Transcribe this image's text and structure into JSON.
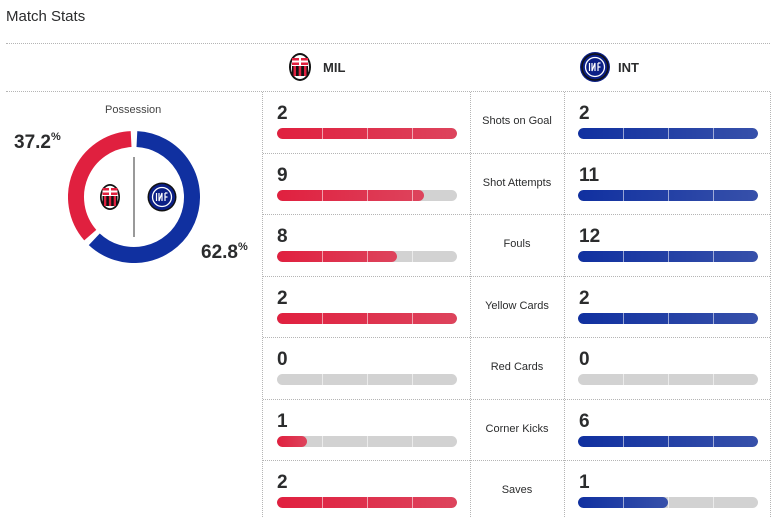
{
  "header": {
    "title": "Match Stats"
  },
  "teams": {
    "home": {
      "abbr": "MIL",
      "color": "#e0203f",
      "crest": "ac-milan-crest-icon"
    },
    "away": {
      "abbr": "INT",
      "color": "#1030a0",
      "crest": "inter-crest-icon"
    }
  },
  "possession": {
    "label": "Possession",
    "home_value": "37.2",
    "away_value": "62.8",
    "unit": "%",
    "home_fraction": 0.372,
    "away_fraction": 0.628
  },
  "stats": [
    {
      "label": "Shots on Goal",
      "home": "2",
      "away": "2",
      "home_fill": 1.0,
      "away_fill": 1.0
    },
    {
      "label": "Shot Attempts",
      "home": "9",
      "away": "11",
      "home_fill": 0.818,
      "away_fill": 1.0
    },
    {
      "label": "Fouls",
      "home": "8",
      "away": "12",
      "home_fill": 0.667,
      "away_fill": 1.0
    },
    {
      "label": "Yellow Cards",
      "home": "2",
      "away": "2",
      "home_fill": 1.0,
      "away_fill": 1.0
    },
    {
      "label": "Red Cards",
      "home": "0",
      "away": "0",
      "home_fill": 0.0,
      "away_fill": 0.0
    },
    {
      "label": "Corner Kicks",
      "home": "1",
      "away": "6",
      "home_fill": 0.167,
      "away_fill": 1.0
    },
    {
      "label": "Saves",
      "home": "2",
      "away": "1",
      "home_fill": 1.0,
      "away_fill": 0.5
    }
  ]
}
